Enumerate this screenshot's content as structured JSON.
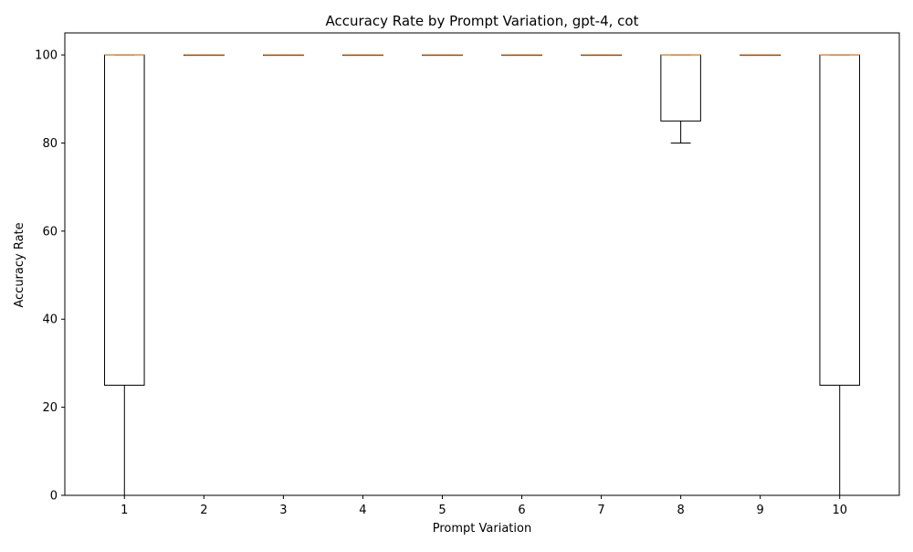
{
  "chart_data": {
    "type": "box",
    "title": "Accuracy Rate by Prompt Variation, gpt-4, cot",
    "xlabel": "Prompt Variation",
    "ylabel": "Accuracy Rate",
    "ylim": [
      0,
      105
    ],
    "yticks": [
      0,
      20,
      40,
      60,
      80,
      100
    ],
    "grid": false,
    "categories": [
      "1",
      "2",
      "3",
      "4",
      "5",
      "6",
      "7",
      "8",
      "9",
      "10"
    ],
    "boxes": [
      {
        "whisker_low": 0,
        "q1": 25,
        "median": 100,
        "q3": 100,
        "whisker_high": 100
      },
      {
        "whisker_low": 100,
        "q1": 100,
        "median": 100,
        "q3": 100,
        "whisker_high": 100
      },
      {
        "whisker_low": 100,
        "q1": 100,
        "median": 100,
        "q3": 100,
        "whisker_high": 100
      },
      {
        "whisker_low": 100,
        "q1": 100,
        "median": 100,
        "q3": 100,
        "whisker_high": 100
      },
      {
        "whisker_low": 100,
        "q1": 100,
        "median": 100,
        "q3": 100,
        "whisker_high": 100
      },
      {
        "whisker_low": 100,
        "q1": 100,
        "median": 100,
        "q3": 100,
        "whisker_high": 100
      },
      {
        "whisker_low": 100,
        "q1": 100,
        "median": 100,
        "q3": 100,
        "whisker_high": 100
      },
      {
        "whisker_low": 80,
        "q1": 85,
        "median": 100,
        "q3": 100,
        "whisker_high": 100
      },
      {
        "whisker_low": 100,
        "q1": 100,
        "median": 100,
        "q3": 100,
        "whisker_high": 100
      },
      {
        "whisker_low": 0,
        "q1": 25,
        "median": 100,
        "q3": 100,
        "whisker_high": 100
      }
    ],
    "colors": {
      "box": "#000000",
      "median": "#ff7f0e"
    }
  }
}
